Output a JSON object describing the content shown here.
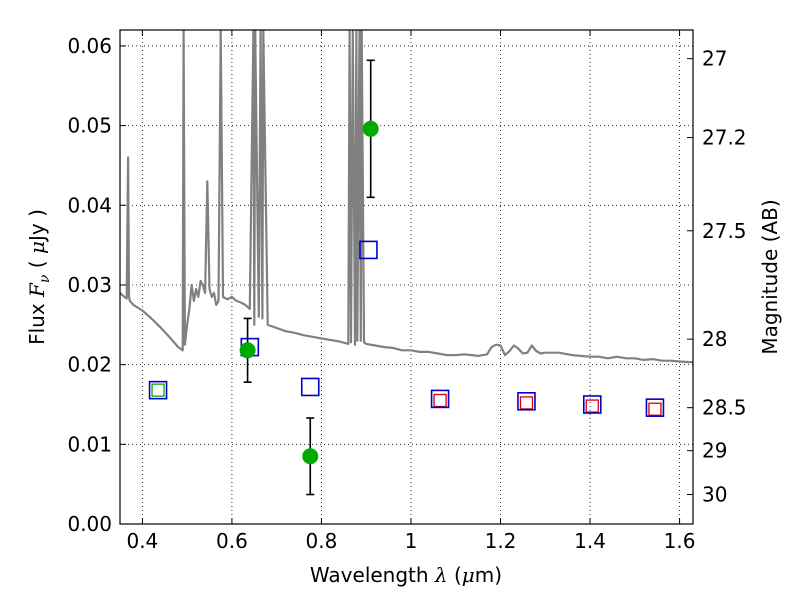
{
  "chart_data": {
    "type": "scatter",
    "title": "",
    "xlabel": "Wavelength  λ (μm)",
    "ylabel": "Flux  F_ν  ( μJy )",
    "ylabel_parts": {
      "prefix": "Flux  ",
      "symbol": "F",
      "subscript": "ν",
      "open": "  ( ",
      "mu": "μ",
      "unit": "Jy )"
    },
    "xlabel_parts": {
      "prefix": "Wavelength  ",
      "symbol": "λ",
      "open": " (",
      "mu": "μ",
      "unit": "m)"
    },
    "y2label": "Magnitude (AB)",
    "xlim": [
      0.35,
      1.63
    ],
    "ylim": [
      0.0,
      0.062
    ],
    "grid": true,
    "xticks": [
      0.4,
      0.6,
      0.8,
      1.0,
      1.2,
      1.4,
      1.6
    ],
    "xtick_labels": [
      "0.4",
      "0.6",
      "0.8",
      "1",
      "1.2",
      "1.4",
      "1.6"
    ],
    "yticks": [
      0.0,
      0.01,
      0.02,
      0.03,
      0.04,
      0.05,
      0.06
    ],
    "ytick_labels": [
      "0.00",
      "0.01",
      "0.02",
      "0.03",
      "0.04",
      "0.05",
      "0.06"
    ],
    "mag_ticks": [
      {
        "label": "27",
        "flux": 0.0584
      },
      {
        "label": "27.2",
        "flux": 0.0485
      },
      {
        "label": "27.5",
        "flux": 0.0368
      },
      {
        "label": "28",
        "flux": 0.0232
      },
      {
        "label": "28.5",
        "flux": 0.0146
      },
      {
        "label": "29",
        "flux": 0.0092
      },
      {
        "label": "30",
        "flux": 0.0037
      }
    ],
    "colors": {
      "sed": "#808080",
      "detections": "#00aa00",
      "error_bars": "#000000",
      "model_points": "#0000cc",
      "lower_inner": "#dd0000",
      "upper_inner": "#00aa00"
    },
    "sed_model": {
      "name": "",
      "x": [
        0.35,
        0.36,
        0.365,
        0.368,
        0.37,
        0.372,
        0.38,
        0.4,
        0.42,
        0.44,
        0.46,
        0.48,
        0.49,
        0.492,
        0.495,
        0.5,
        0.505,
        0.51,
        0.515,
        0.52,
        0.525,
        0.53,
        0.535,
        0.54,
        0.545,
        0.55,
        0.555,
        0.56,
        0.565,
        0.57,
        0.575,
        0.58,
        0.59,
        0.6,
        0.61,
        0.62,
        0.63,
        0.64,
        0.648,
        0.65,
        0.652,
        0.66,
        0.664,
        0.668,
        0.67,
        0.68,
        0.7,
        0.72,
        0.74,
        0.76,
        0.78,
        0.8,
        0.82,
        0.84,
        0.86,
        0.863,
        0.866,
        0.87,
        0.875,
        0.878,
        0.88,
        0.885,
        0.888,
        0.89,
        0.895,
        0.9,
        0.92,
        0.94,
        0.96,
        0.98,
        1.0,
        1.02,
        1.04,
        1.06,
        1.08,
        1.1,
        1.12,
        1.15,
        1.17,
        1.18,
        1.19,
        1.2,
        1.21,
        1.22,
        1.23,
        1.24,
        1.25,
        1.26,
        1.27,
        1.28,
        1.29,
        1.3,
        1.33,
        1.36,
        1.4,
        1.42,
        1.44,
        1.46,
        1.48,
        1.5,
        1.52,
        1.54,
        1.56,
        1.58,
        1.6,
        1.63
      ],
      "y": [
        0.029,
        0.0285,
        0.0283,
        0.046,
        0.0285,
        0.028,
        0.0275,
        0.0268,
        0.0258,
        0.0247,
        0.0235,
        0.0222,
        0.0218,
        0.062,
        0.0225,
        0.025,
        0.027,
        0.03,
        0.028,
        0.0295,
        0.0285,
        0.0305,
        0.03,
        0.029,
        0.043,
        0.0295,
        0.0285,
        0.029,
        0.0275,
        0.028,
        0.062,
        0.0285,
        0.0282,
        0.0285,
        0.028,
        0.0278,
        0.0275,
        0.027,
        0.062,
        0.025,
        0.062,
        0.026,
        0.062,
        0.0258,
        0.062,
        0.025,
        0.0246,
        0.0242,
        0.024,
        0.0237,
        0.0235,
        0.0233,
        0.0231,
        0.0229,
        0.0226,
        0.062,
        0.0228,
        0.062,
        0.0225,
        0.062,
        0.023,
        0.062,
        0.023,
        0.062,
        0.0228,
        0.0226,
        0.0224,
        0.0222,
        0.0221,
        0.0218,
        0.0218,
        0.0216,
        0.0216,
        0.0214,
        0.0212,
        0.0212,
        0.0213,
        0.0211,
        0.0213,
        0.0222,
        0.0225,
        0.0224,
        0.0212,
        0.0217,
        0.0224,
        0.022,
        0.0214,
        0.0215,
        0.0224,
        0.0217,
        0.0214,
        0.0215,
        0.0215,
        0.0212,
        0.021,
        0.021,
        0.0208,
        0.021,
        0.0208,
        0.0208,
        0.0206,
        0.0207,
        0.0205,
        0.0205,
        0.0204,
        0.0203
      ]
    },
    "detections": {
      "name": "",
      "points": [
        {
          "x": 0.635,
          "y": 0.0218,
          "yerr": 0.004
        },
        {
          "x": 0.775,
          "y": 0.0085,
          "yerr": 0.0048
        },
        {
          "x": 0.91,
          "y": 0.0496,
          "yerr": 0.0086
        }
      ]
    },
    "model_photometry": {
      "name": "",
      "points": [
        {
          "x": 0.435,
          "y": 0.0168,
          "inner": "upper"
        },
        {
          "x": 0.64,
          "y": 0.0222,
          "inner": "none"
        },
        {
          "x": 0.775,
          "y": 0.0172,
          "inner": "none"
        },
        {
          "x": 0.905,
          "y": 0.0344,
          "inner": "none"
        },
        {
          "x": 1.065,
          "y": 0.0157,
          "inner": "lower"
        },
        {
          "x": 1.258,
          "y": 0.0154,
          "inner": "lower"
        },
        {
          "x": 1.405,
          "y": 0.015,
          "inner": "lower"
        },
        {
          "x": 1.545,
          "y": 0.0146,
          "inner": "lower"
        }
      ]
    },
    "observed_photometry": {
      "name": "",
      "points": [
        {
          "x": 0.435,
          "y": 0.0168,
          "kind": "upper"
        },
        {
          "x": 1.065,
          "y": 0.0155,
          "kind": "lower"
        },
        {
          "x": 1.258,
          "y": 0.0152,
          "kind": "lower"
        },
        {
          "x": 1.405,
          "y": 0.0148,
          "kind": "lower"
        },
        {
          "x": 1.545,
          "y": 0.0144,
          "kind": "lower"
        }
      ]
    }
  }
}
